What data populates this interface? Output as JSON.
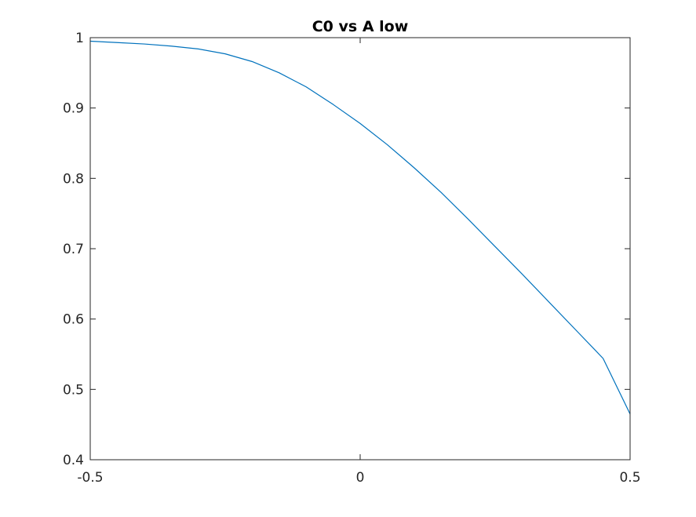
{
  "chart_data": {
    "type": "line",
    "title": "C0 vs A low",
    "xlabel": "",
    "ylabel": "",
    "xlim": [
      -0.5,
      0.5
    ],
    "ylim": [
      0.4,
      1.0
    ],
    "x_ticks": [
      -0.5,
      0,
      0.5
    ],
    "x_tick_labels": [
      "-0.5",
      "0",
      "0.5"
    ],
    "y_ticks": [
      0.4,
      0.5,
      0.6,
      0.7,
      0.8,
      0.9,
      1.0
    ],
    "y_tick_labels": [
      "0.4",
      "0.5",
      "0.6",
      "0.7",
      "0.8",
      "0.9",
      "1"
    ],
    "grid": false,
    "box": true,
    "series": [
      {
        "color": "#0072bd",
        "x": [
          -0.5,
          -0.45,
          -0.4,
          -0.35,
          -0.3,
          -0.25,
          -0.2,
          -0.15,
          -0.1,
          -0.05,
          0.0,
          0.05,
          0.1,
          0.15,
          0.2,
          0.25,
          0.3,
          0.35,
          0.4,
          0.45,
          0.5
        ],
        "y": [
          0.995,
          0.993,
          0.991,
          0.988,
          0.984,
          0.977,
          0.966,
          0.95,
          0.93,
          0.905,
          0.878,
          0.848,
          0.815,
          0.78,
          0.742,
          0.703,
          0.664,
          0.624,
          0.584,
          0.544,
          0.465
        ]
      }
    ]
  }
}
